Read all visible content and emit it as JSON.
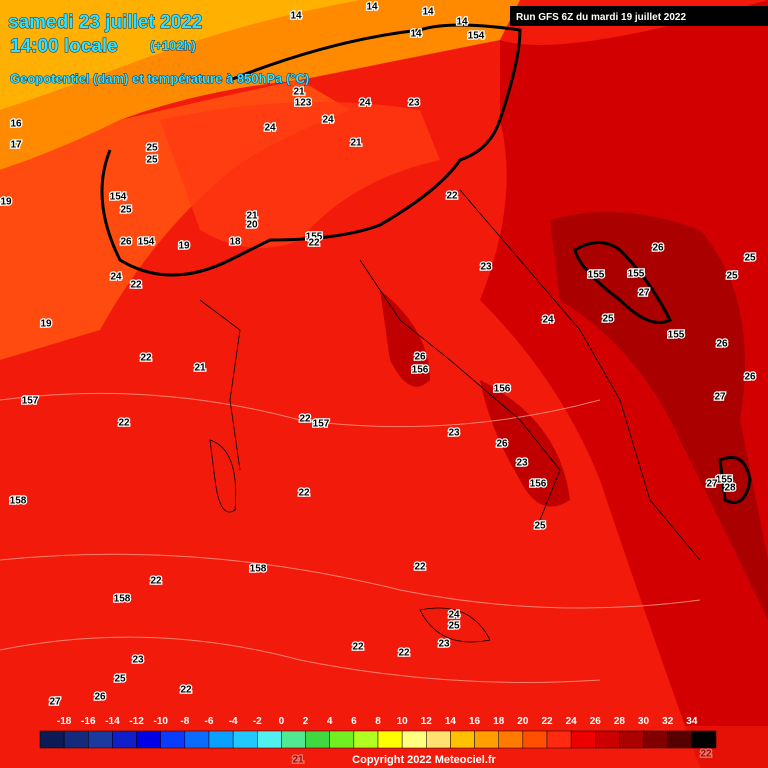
{
  "header": {
    "title": "samedi 23 juillet 2022",
    "time": "14:00 locale",
    "offset": "(+102h)",
    "subtitle": "Geopotentiel (dam) et température à 850hPa (°C)",
    "run": "Run GFS 6Z du mardi 19 juillet 2022"
  },
  "map_labels": [
    "14",
    "14",
    "14",
    "14",
    "14",
    "154",
    "16",
    "17",
    "19",
    "19",
    "25",
    "25",
    "154",
    "25",
    "26",
    "154",
    "19",
    "24",
    "22",
    "18",
    "21",
    "20",
    "155",
    "22",
    "21",
    "123",
    "24",
    "24",
    "24",
    "23",
    "21",
    "22",
    "23",
    "24",
    "25",
    "26",
    "156",
    "156",
    "155",
    "155",
    "27",
    "155",
    "26",
    "25",
    "26",
    "27",
    "26",
    "25",
    "157",
    "22",
    "22",
    "22",
    "157",
    "21",
    "23",
    "26",
    "23",
    "156",
    "25",
    "22",
    "158",
    "22",
    "158",
    "158",
    "22",
    "22",
    "24",
    "25",
    "23",
    "22",
    "23",
    "25",
    "26",
    "27",
    "22",
    "21",
    "22",
    "155",
    "28",
    "27"
  ],
  "scale": {
    "labels": [
      "-18",
      "-16",
      "-14",
      "-12",
      "-10",
      "-8",
      "-6",
      "-4",
      "-2",
      "0",
      "2",
      "4",
      "6",
      "8",
      "10",
      "12",
      "14",
      "16",
      "18",
      "20",
      "22",
      "24",
      "26",
      "28",
      "30",
      "32",
      "34"
    ],
    "colors": [
      "#0c1a55",
      "#142a7a",
      "#1a3aa0",
      "#1020c8",
      "#0000e6",
      "#0a3cff",
      "#0a6cff",
      "#0aa0ff",
      "#20c8ff",
      "#50f0f0",
      "#50e890",
      "#40d840",
      "#70f020",
      "#b0ff20",
      "#ffff00",
      "#ffff80",
      "#ffe070",
      "#ffc000",
      "#ffa000",
      "#ff7a00",
      "#ff5000",
      "#ff2a10",
      "#ee0000",
      "#cc0000",
      "#aa0000",
      "#800000",
      "#560000",
      "#000000"
    ]
  },
  "footer": {
    "copyright": "Copyright 2022 Meteociel.fr"
  }
}
